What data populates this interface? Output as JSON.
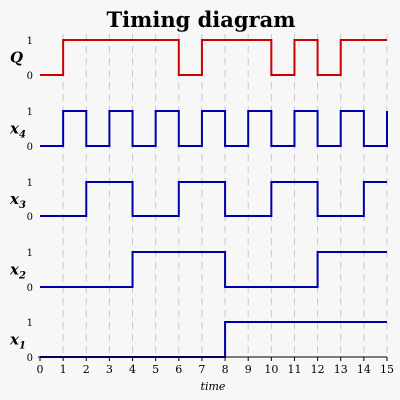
{
  "title": "Timing diagram",
  "x_axis": {
    "label": "time",
    "min": 0,
    "max": 15,
    "ticks": [
      "0",
      "1",
      "2",
      "3",
      "4",
      "5",
      "6",
      "7",
      "8",
      "9",
      "10",
      "11",
      "12",
      "13",
      "14",
      "15"
    ]
  },
  "level_labels": [
    "0",
    "1"
  ],
  "colors": {
    "Q": "#cc0000",
    "inputs": "#0000aa",
    "grid": "#c8c8c8",
    "background": "#f7f7f7"
  },
  "chart_data": {
    "type": "timing",
    "signals": [
      {
        "name": "Q",
        "base": "Q",
        "sub": "",
        "color": "#cc0000",
        "transitions": [
          [
            0,
            0
          ],
          [
            1,
            1
          ],
          [
            6,
            0
          ],
          [
            7,
            1
          ],
          [
            10,
            0
          ],
          [
            11,
            1
          ],
          [
            12,
            0
          ],
          [
            13,
            1
          ]
        ]
      },
      {
        "name": "x4",
        "base": "x",
        "sub": "4",
        "color": "#0000aa",
        "transitions": [
          [
            0,
            0
          ],
          [
            1,
            1
          ],
          [
            2,
            0
          ],
          [
            3,
            1
          ],
          [
            4,
            0
          ],
          [
            5,
            1
          ],
          [
            6,
            0
          ],
          [
            7,
            1
          ],
          [
            8,
            0
          ],
          [
            9,
            1
          ],
          [
            10,
            0
          ],
          [
            11,
            1
          ],
          [
            12,
            0
          ],
          [
            13,
            1
          ],
          [
            14,
            0
          ],
          [
            15,
            1
          ]
        ]
      },
      {
        "name": "x3",
        "base": "x",
        "sub": "3",
        "color": "#0000aa",
        "transitions": [
          [
            0,
            0
          ],
          [
            2,
            1
          ],
          [
            4,
            0
          ],
          [
            6,
            1
          ],
          [
            8,
            0
          ],
          [
            10,
            1
          ],
          [
            12,
            0
          ],
          [
            14,
            1
          ]
        ]
      },
      {
        "name": "x2",
        "base": "x",
        "sub": "2",
        "color": "#0000aa",
        "transitions": [
          [
            0,
            0
          ],
          [
            4,
            1
          ],
          [
            8,
            0
          ],
          [
            12,
            1
          ]
        ]
      },
      {
        "name": "x1",
        "base": "x",
        "sub": "1",
        "color": "#0000aa",
        "transitions": [
          [
            0,
            0
          ],
          [
            8,
            1
          ]
        ]
      }
    ]
  }
}
